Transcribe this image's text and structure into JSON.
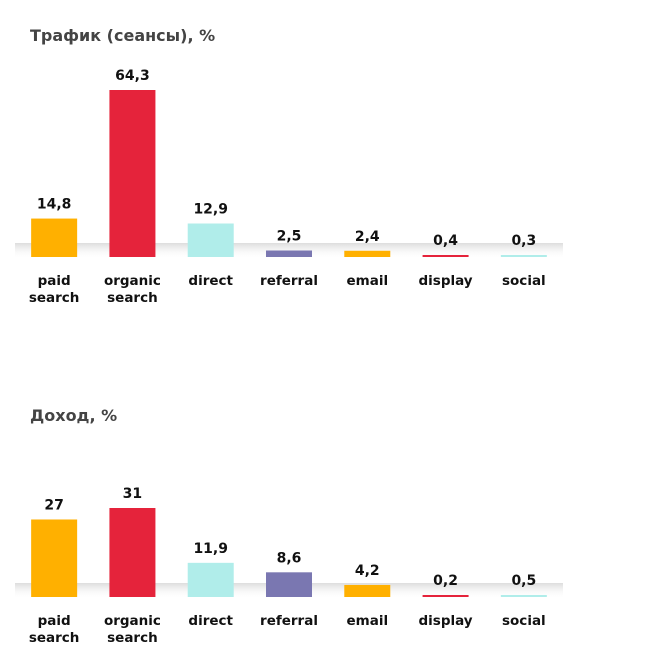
{
  "colors": {
    "orange": "#FFB000",
    "red": "#E5233B",
    "cyan": "#B0EDEA",
    "purple": "#7A77B1"
  },
  "chart_data": [
    {
      "type": "bar",
      "title": "Трафик (сеансы), %",
      "categories": [
        [
          "paid",
          "search"
        ],
        [
          "organic",
          "search"
        ],
        [
          "direct"
        ],
        [
          "referral"
        ],
        [
          "email"
        ],
        [
          "display"
        ],
        [
          "social"
        ]
      ],
      "values": [
        14.8,
        64.3,
        12.9,
        2.5,
        2.4,
        0.4,
        0.3
      ],
      "value_labels": [
        "14,8",
        "64,3",
        "12,9",
        "2,5",
        "2,4",
        "0,4",
        "0,3"
      ],
      "bar_colors": [
        "#FFB000",
        "#E5233B",
        "#B0EDEA",
        "#7A77B1",
        "#FFB000",
        "#E5233B",
        "#B0EDEA"
      ],
      "ylim": [
        0,
        64.3
      ],
      "grid": false,
      "legend": "none"
    },
    {
      "type": "bar",
      "title": "Доход, %",
      "categories": [
        [
          "paid",
          "search"
        ],
        [
          "organic",
          "search"
        ],
        [
          "direct"
        ],
        [
          "referral"
        ],
        [
          "email"
        ],
        [
          "display"
        ],
        [
          "social"
        ]
      ],
      "values": [
        27,
        31,
        11.9,
        8.6,
        4.2,
        0.2,
        0.5
      ],
      "value_labels": [
        "27",
        "31",
        "11,9",
        "8,6",
        "4,2",
        "0,2",
        "0,5"
      ],
      "bar_colors": [
        "#FFB000",
        "#E5233B",
        "#B0EDEA",
        "#7A77B1",
        "#FFB000",
        "#E5233B",
        "#B0EDEA"
      ],
      "ylim": [
        0,
        31
      ],
      "grid": false,
      "legend": "none"
    }
  ]
}
